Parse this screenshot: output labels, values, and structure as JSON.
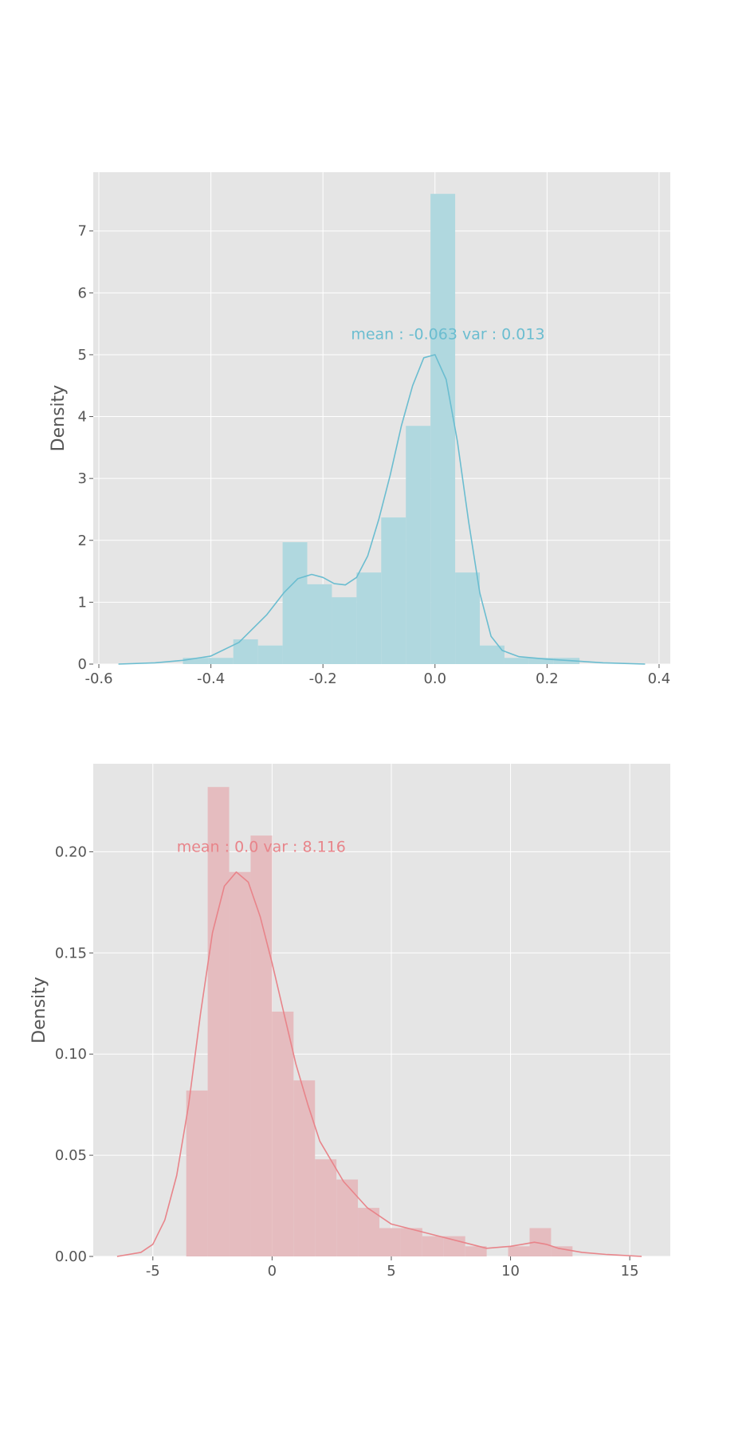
{
  "chart_data": [
    {
      "type": "bar",
      "kind": "histogram-with-kde",
      "color": "#6bbdd0",
      "bar_color": "#b0d8df",
      "ylabel": "Density",
      "xlabel": "",
      "xlim": [
        -0.61,
        0.42
      ],
      "ylim": [
        0,
        7.95
      ],
      "xticks": [
        -0.6,
        -0.4,
        -0.2,
        0.0,
        0.2,
        0.4
      ],
      "xtick_labels": [
        "-0.6",
        "-0.4",
        "-0.2",
        "0.0",
        "0.2",
        "0.4"
      ],
      "yticks": [
        0,
        1,
        2,
        3,
        4,
        5,
        6,
        7
      ],
      "ytick_labels": [
        "0",
        "1",
        "2",
        "3",
        "4",
        "5",
        "6",
        "7"
      ],
      "grid": true,
      "annotation": {
        "text": "mean : -0.063 var : 0.013",
        "x": -0.15,
        "y": 5.25
      },
      "bins": [
        {
          "x0": -0.45,
          "x1": -0.405,
          "y": 0.1
        },
        {
          "x0": -0.405,
          "x1": -0.36,
          "y": 0.1
        },
        {
          "x0": -0.36,
          "x1": -0.316,
          "y": 0.4
        },
        {
          "x0": -0.316,
          "x1": -0.272,
          "y": 0.3
        },
        {
          "x0": -0.272,
          "x1": -0.228,
          "y": 1.97
        },
        {
          "x0": -0.228,
          "x1": -0.184,
          "y": 1.29
        },
        {
          "x0": -0.184,
          "x1": -0.14,
          "y": 1.08
        },
        {
          "x0": -0.14,
          "x1": -0.096,
          "y": 1.48
        },
        {
          "x0": -0.096,
          "x1": -0.052,
          "y": 2.37
        },
        {
          "x0": -0.052,
          "x1": -0.008,
          "y": 3.85
        },
        {
          "x0": -0.008,
          "x1": 0.036,
          "y": 7.6
        },
        {
          "x0": 0.036,
          "x1": 0.08,
          "y": 1.48
        },
        {
          "x0": 0.08,
          "x1": 0.124,
          "y": 0.3
        },
        {
          "x0": 0.124,
          "x1": 0.168,
          "y": 0.1
        },
        {
          "x0": 0.168,
          "x1": 0.212,
          "y": 0.1
        },
        {
          "x0": 0.212,
          "x1": 0.258,
          "y": 0.1
        }
      ],
      "kde": {
        "x": [
          -0.565,
          -0.5,
          -0.45,
          -0.4,
          -0.35,
          -0.3,
          -0.27,
          -0.245,
          -0.22,
          -0.2,
          -0.18,
          -0.16,
          -0.14,
          -0.12,
          -0.1,
          -0.08,
          -0.06,
          -0.04,
          -0.02,
          0.0,
          0.02,
          0.04,
          0.06,
          0.08,
          0.1,
          0.12,
          0.15,
          0.2,
          0.25,
          0.3,
          0.375
        ],
        "y": [
          0.0,
          0.02,
          0.06,
          0.13,
          0.35,
          0.8,
          1.15,
          1.38,
          1.45,
          1.4,
          1.3,
          1.28,
          1.4,
          1.75,
          2.35,
          3.05,
          3.85,
          4.5,
          4.95,
          5.0,
          4.6,
          3.6,
          2.3,
          1.15,
          0.45,
          0.22,
          0.12,
          0.08,
          0.05,
          0.02,
          0.0
        ]
      }
    },
    {
      "type": "bar",
      "kind": "histogram-with-kde",
      "color": "#e8848a",
      "bar_color": "#e5bcbf",
      "ylabel": "Density",
      "xlabel": "",
      "xlim": [
        -7.5,
        16.7
      ],
      "ylim": [
        0,
        0.2435
      ],
      "xticks": [
        -5,
        0,
        5,
        10,
        15
      ],
      "xtick_labels": [
        "-5",
        "0",
        "5",
        "10",
        "15"
      ],
      "yticks": [
        0.0,
        0.05,
        0.1,
        0.15,
        0.2
      ],
      "ytick_labels": [
        "0.00",
        "0.05",
        "0.10",
        "0.15",
        "0.20"
      ],
      "grid": true,
      "annotation": {
        "text": "mean : 0.0 var : 8.116",
        "x": -4.0,
        "y": 0.2
      },
      "bins": [
        {
          "x0": -3.6,
          "x1": -2.7,
          "y": 0.082
        },
        {
          "x0": -2.7,
          "x1": -1.8,
          "y": 0.232
        },
        {
          "x0": -1.8,
          "x1": -0.9,
          "y": 0.19
        },
        {
          "x0": -0.9,
          "x1": 0.0,
          "y": 0.208
        },
        {
          "x0": 0.0,
          "x1": 0.9,
          "y": 0.121
        },
        {
          "x0": 0.9,
          "x1": 1.8,
          "y": 0.087
        },
        {
          "x0": 1.8,
          "x1": 2.7,
          "y": 0.048
        },
        {
          "x0": 2.7,
          "x1": 3.6,
          "y": 0.038
        },
        {
          "x0": 3.6,
          "x1": 4.5,
          "y": 0.024
        },
        {
          "x0": 4.5,
          "x1": 5.4,
          "y": 0.014
        },
        {
          "x0": 5.4,
          "x1": 6.3,
          "y": 0.014
        },
        {
          "x0": 6.3,
          "x1": 7.2,
          "y": 0.01
        },
        {
          "x0": 7.2,
          "x1": 8.1,
          "y": 0.01
        },
        {
          "x0": 8.1,
          "x1": 9.0,
          "y": 0.005
        },
        {
          "x0": 9.9,
          "x1": 10.8,
          "y": 0.005
        },
        {
          "x0": 10.8,
          "x1": 11.7,
          "y": 0.014
        },
        {
          "x0": 11.7,
          "x1": 12.6,
          "y": 0.005
        }
      ],
      "kde": {
        "x": [
          -6.5,
          -5.5,
          -5.0,
          -4.5,
          -4.0,
          -3.5,
          -3.0,
          -2.5,
          -2.0,
          -1.5,
          -1.0,
          -0.5,
          0.0,
          0.5,
          1.0,
          1.5,
          2.0,
          3.0,
          4.0,
          5.0,
          6.0,
          7.0,
          8.0,
          9.0,
          10.0,
          10.5,
          11.0,
          11.5,
          12.0,
          13.0,
          14.0,
          15.5
        ],
        "y": [
          0.0,
          0.002,
          0.006,
          0.018,
          0.04,
          0.075,
          0.12,
          0.16,
          0.183,
          0.19,
          0.185,
          0.168,
          0.145,
          0.12,
          0.095,
          0.075,
          0.057,
          0.037,
          0.024,
          0.016,
          0.013,
          0.01,
          0.007,
          0.004,
          0.005,
          0.006,
          0.007,
          0.006,
          0.004,
          0.002,
          0.001,
          0.0
        ]
      }
    }
  ]
}
